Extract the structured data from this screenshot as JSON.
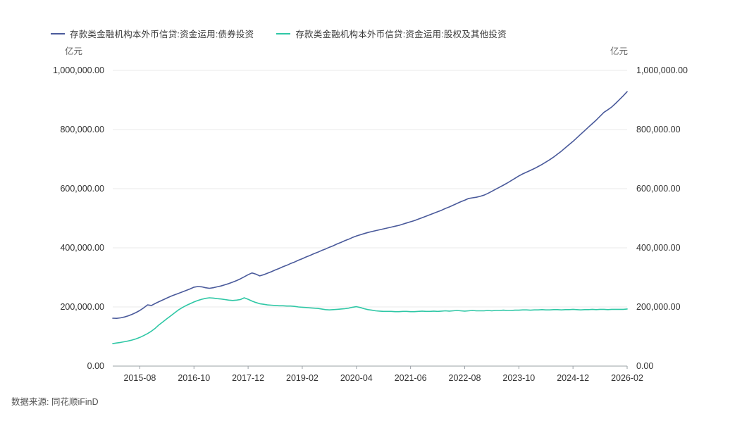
{
  "legend": {
    "items": [
      {
        "label": "存款类金融机构本外币信贷:资金运用:债券投资",
        "color": "#4a5a9b"
      },
      {
        "label": "存款类金融机构本外币信贷:资金运用:股权及其他投资",
        "color": "#2ec7a5"
      }
    ]
  },
  "axes": {
    "left_unit": "亿元",
    "right_unit": "亿元"
  },
  "source": {
    "text": "数据来源: 同花顺iFinD"
  },
  "chart_data": {
    "type": "line",
    "title": "",
    "unit": "亿元",
    "ylim": [
      0,
      1000000
    ],
    "grid": true,
    "legend_position": "top-left",
    "y_ticks": [
      0,
      200000,
      400000,
      600000,
      800000,
      1000000
    ],
    "y_tick_labels": [
      "0.00",
      "200,000.00",
      "400,000.00",
      "600,000.00",
      "800,000.00",
      "1,000,000.00"
    ],
    "x_start": "2015-01",
    "x_freq": "monthly",
    "x_tick_labels": [
      "2015-08",
      "2016-10",
      "2017-12",
      "2019-02",
      "2020-04",
      "2021-06",
      "2022-08",
      "2023-10",
      "2024-12",
      "2026-02"
    ],
    "x_tick_indices": [
      7,
      21,
      35,
      49,
      63,
      77,
      91,
      105,
      119,
      133
    ],
    "series": [
      {
        "name": "存款类金融机构本外币信贷:资金运用:债券投资",
        "color": "#4a5a9b",
        "values": [
          162000,
          161500,
          163000,
          166000,
          170000,
          175000,
          181000,
          188000,
          197000,
          207000,
          205000,
          212000,
          218000,
          224000,
          230000,
          236000,
          241000,
          246000,
          251000,
          256000,
          261000,
          267000,
          269000,
          268000,
          265000,
          263000,
          265000,
          268000,
          271000,
          275000,
          279000,
          284000,
          289000,
          295000,
          302000,
          309000,
          315000,
          311000,
          305000,
          309000,
          314000,
          319000,
          325000,
          330000,
          336000,
          341000,
          347000,
          352000,
          358000,
          363000,
          369000,
          374000,
          380000,
          385000,
          391000,
          396000,
          402000,
          407000,
          413000,
          418000,
          424000,
          429000,
          435000,
          440000,
          444000,
          448000,
          452000,
          455000,
          458000,
          461000,
          464000,
          467000,
          470000,
          473000,
          476000,
          480000,
          484000,
          488000,
          492000,
          497000,
          502000,
          507000,
          512000,
          517000,
          522000,
          527000,
          533000,
          538000,
          544000,
          550000,
          556000,
          561000,
          567000,
          569000,
          571000,
          574000,
          578000,
          584000,
          591000,
          598000,
          605000,
          612000,
          619000,
          627000,
          635000,
          643000,
          650000,
          656000,
          662000,
          668000,
          675000,
          682000,
          690000,
          698000,
          707000,
          717000,
          727000,
          738000,
          749000,
          760000,
          772000,
          784000,
          796000,
          808000,
          820000,
          832000,
          845000,
          858000,
          867000,
          876000,
          888000,
          901000,
          914000,
          928000
        ]
      },
      {
        "name": "存款类金融机构本外币信贷:资金运用:股权及其他投资",
        "color": "#2ec7a5",
        "values": [
          76000,
          78000,
          80000,
          82500,
          85000,
          88000,
          92000,
          97000,
          103000,
          110000,
          118000,
          128000,
          140000,
          150000,
          160000,
          170000,
          180000,
          190000,
          198000,
          205000,
          211000,
          217000,
          222000,
          226000,
          229000,
          231000,
          230000,
          228000,
          227000,
          225000,
          223000,
          222000,
          223000,
          225000,
          231000,
          226000,
          220000,
          215000,
          211000,
          209000,
          207000,
          206000,
          205000,
          204000,
          204000,
          203000,
          203000,
          202000,
          200000,
          199000,
          198000,
          197000,
          196000,
          195000,
          193000,
          191000,
          190000,
          191000,
          192000,
          193000,
          194000,
          196000,
          199000,
          201000,
          198000,
          194000,
          191000,
          189000,
          187000,
          186000,
          185000,
          185000,
          185000,
          184000,
          184000,
          185000,
          185000,
          184000,
          184000,
          185000,
          186000,
          185000,
          185000,
          186000,
          185000,
          186000,
          187000,
          186000,
          187000,
          188000,
          187000,
          186000,
          187000,
          188000,
          187000,
          187000,
          187000,
          188000,
          187000,
          188000,
          188000,
          189000,
          188000,
          188000,
          189000,
          189000,
          190000,
          190000,
          189000,
          190000,
          190000,
          191000,
          190000,
          190000,
          191000,
          191000,
          190000,
          191000,
          191000,
          192000,
          191000,
          190000,
          191000,
          191000,
          192000,
          191000,
          192000,
          192000,
          191000,
          192000,
          192000,
          192000,
          192000,
          193000
        ]
      }
    ]
  }
}
